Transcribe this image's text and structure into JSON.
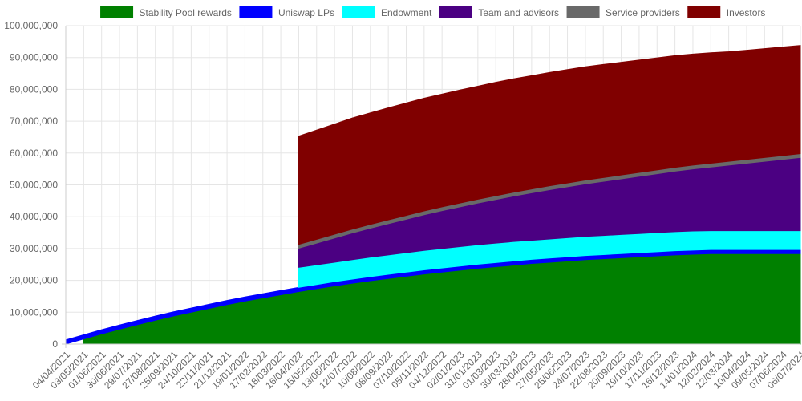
{
  "chart_data": {
    "type": "area",
    "stacked": true,
    "legend_position": "top",
    "grid": true,
    "ylim": [
      0,
      100000000
    ],
    "y_ticks": [
      0,
      10000000,
      20000000,
      30000000,
      40000000,
      50000000,
      60000000,
      70000000,
      80000000,
      90000000,
      100000000
    ],
    "y_tick_labels": [
      "0",
      "10,000,000",
      "20,000,000",
      "30,000,000",
      "40,000,000",
      "50,000,000",
      "60,000,000",
      "70,000,000",
      "80,000,000",
      "90,000,000",
      "100,000,000"
    ],
    "categories": [
      "04/04/2021",
      "03/05/2021",
      "01/06/2021",
      "30/06/2021",
      "29/07/2021",
      "27/08/2021",
      "25/09/2021",
      "24/10/2021",
      "22/11/2021",
      "21/12/2021",
      "19/01/2022",
      "17/02/2022",
      "18/03/2022",
      "16/04/2022",
      "15/05/2022",
      "13/06/2022",
      "12/07/2022",
      "10/08/2022",
      "08/09/2022",
      "07/10/2022",
      "05/11/2022",
      "04/12/2022",
      "02/01/2023",
      "31/01/2023",
      "01/03/2023",
      "30/03/2023",
      "28/04/2023",
      "27/05/2023",
      "25/06/2023",
      "24/07/2023",
      "22/08/2023",
      "20/09/2023",
      "19/10/2023",
      "17/11/2023",
      "16/12/2023",
      "14/01/2024",
      "12/02/2024",
      "12/03/2024",
      "10/04/2024",
      "09/05/2024",
      "07/06/2024",
      "06/07/2024"
    ],
    "series": [
      {
        "name": "Stability Pool rewards",
        "color": "#008000",
        "values": [
          0,
          1600000,
          3200000,
          4700000,
          6100000,
          7500000,
          8800000,
          10000000,
          11200000,
          12400000,
          13500000,
          14500000,
          15500000,
          16500000,
          17400000,
          18300000,
          19100000,
          19900000,
          20600000,
          21300000,
          22000000,
          22600000,
          23200000,
          23800000,
          24300000,
          24800000,
          25300000,
          25700000,
          26100000,
          26500000,
          26800000,
          27100000,
          27400000,
          27700000,
          28000000,
          28200000,
          28400000,
          28400000,
          28400000,
          28400000,
          28400000,
          28400000
        ]
      },
      {
        "name": "Uniswap LPs",
        "color": "#0000ff",
        "values": [
          1300000,
          1300000,
          1300000,
          1300000,
          1300000,
          1300000,
          1300000,
          1300000,
          1300000,
          1300000,
          1300000,
          1300000,
          1300000,
          1300000,
          1300000,
          1300000,
          1300000,
          1300000,
          1300000,
          1300000,
          1300000,
          1300000,
          1300000,
          1300000,
          1300000,
          1300000,
          1300000,
          1300000,
          1300000,
          1300000,
          1300000,
          1300000,
          1300000,
          1300000,
          1300000,
          1300000,
          1300000,
          1300000,
          1300000,
          1300000,
          1300000,
          1300000
        ]
      },
      {
        "name": "Endowment",
        "color": "#00ffff",
        "values": [
          0,
          0,
          0,
          0,
          0,
          0,
          0,
          0,
          0,
          0,
          0,
          0,
          0,
          6300000,
          6200000,
          6100000,
          6100000,
          6100000,
          6100000,
          6100000,
          6100000,
          6100000,
          6100000,
          6100000,
          6100000,
          6100000,
          6000000,
          6000000,
          6000000,
          6000000,
          6000000,
          6000000,
          6000000,
          6000000,
          6000000,
          6000000,
          5900000,
          5900000,
          5900000,
          5900000,
          5900000,
          5900000
        ]
      },
      {
        "name": "Team and advisors",
        "color": "#4b0082",
        "values": [
          0,
          0,
          0,
          0,
          0,
          0,
          0,
          0,
          0,
          0,
          0,
          0,
          0,
          6000000,
          6800000,
          7600000,
          8400000,
          9100000,
          9800000,
          10500000,
          11200000,
          11900000,
          12500000,
          13100000,
          13700000,
          14300000,
          14900000,
          15500000,
          16000000,
          16500000,
          17000000,
          17500000,
          18000000,
          18500000,
          19000000,
          19500000,
          20000000,
          20600000,
          21200000,
          21800000,
          22400000,
          23000000
        ]
      },
      {
        "name": "Service providers",
        "color": "#696969",
        "values": [
          0,
          0,
          0,
          0,
          0,
          0,
          0,
          0,
          0,
          0,
          0,
          0,
          0,
          1200000,
          1200000,
          1200000,
          1200000,
          1200000,
          1200000,
          1200000,
          1200000,
          1200000,
          1200000,
          1200000,
          1200000,
          1200000,
          1200000,
          1200000,
          1200000,
          1200000,
          1200000,
          1200000,
          1200000,
          1200000,
          1200000,
          1200000,
          1200000,
          1200000,
          1200000,
          1200000,
          1200000,
          1200000
        ]
      },
      {
        "name": "Investors",
        "color": "#800000",
        "values": [
          0,
          0,
          0,
          0,
          0,
          0,
          0,
          0,
          0,
          0,
          0,
          0,
          0,
          34000000,
          34300000,
          34600000,
          34900000,
          35000000,
          35200000,
          35300000,
          35400000,
          35400000,
          35500000,
          35500000,
          35600000,
          35600000,
          35600000,
          35600000,
          35600000,
          35600000,
          35500000,
          35400000,
          35300000,
          35200000,
          35100000,
          34900000,
          34700000,
          34400000,
          34300000,
          34200000,
          34100000,
          34000000
        ]
      }
    ]
  }
}
